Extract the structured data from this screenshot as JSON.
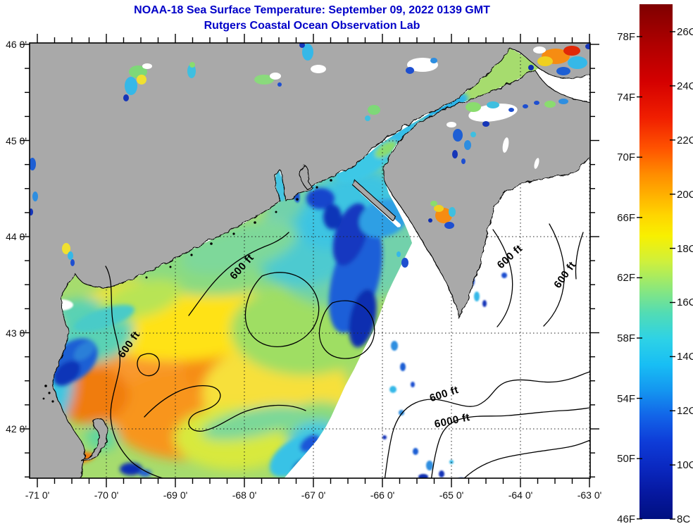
{
  "title": {
    "line1": "NOAA-18 Sea Surface Temperature:  September 09, 2022 0139 GMT",
    "line2": "Rutgers Coastal Ocean Observation Lab",
    "color": "#0000c8"
  },
  "map": {
    "x_axis_ticks": [
      "-71 0'",
      "-70 0'",
      "-69 0'",
      "-68 0'",
      "-67 0'",
      "-66 0'",
      "-65 0'",
      "-64 0'",
      "-63 0'"
    ],
    "y_axis_ticks": [
      "46 0'",
      "45 0'",
      "44 0'",
      "43 0'",
      "42 0'"
    ],
    "contour_label_shallow": "600 ft",
    "contour_label_deep": "6000 ft",
    "land_color": "#a9a9a9",
    "no_data_color": "#ffffff"
  },
  "colorbar": {
    "orientation": "vertical",
    "fahrenheit_labels": [
      "78F",
      "74F",
      "70F",
      "66F",
      "62F",
      "58F",
      "54F",
      "50F",
      "46F"
    ],
    "celsius_labels": [
      "26C",
      "24C",
      "22C",
      "20C",
      "18C",
      "16C",
      "14C",
      "12C",
      "10C",
      "8C"
    ],
    "min_label_f": "46F",
    "max_label_f": "78F",
    "min_label_c": "8C",
    "max_label_c": "26C",
    "gradient_top_to_bottom": [
      "#7f0000",
      "#b00000",
      "#d40000",
      "#f01e00",
      "#ff5300",
      "#ff8c00",
      "#ffb000",
      "#ffd500",
      "#f8f000",
      "#cff03c",
      "#8fe878",
      "#52dcb4",
      "#2ed2e6",
      "#18bef4",
      "#1496f0",
      "#1264e8",
      "#0e3cd8",
      "#0a28c0",
      "#0618a0",
      "#001080"
    ]
  }
}
